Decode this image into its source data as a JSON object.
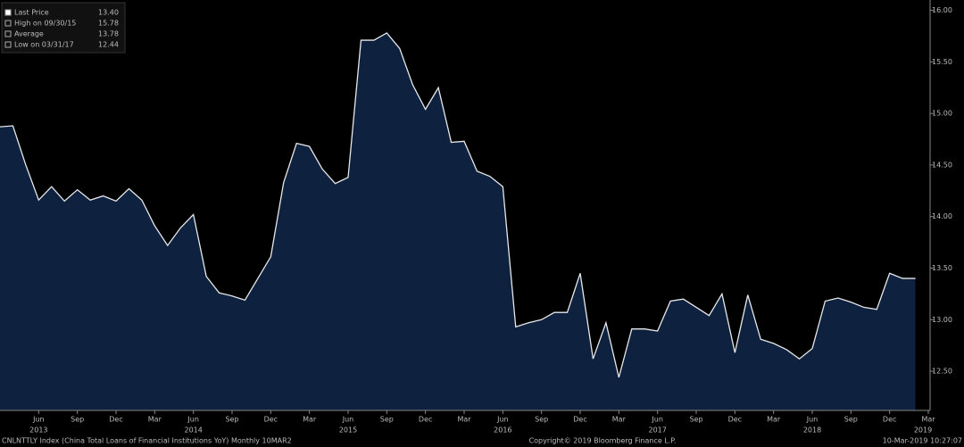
{
  "chart_data": {
    "type": "area",
    "footer_left": "CNLNTTLY Index (China Total Loans of Financial Institutions YoY) Monthly 10MAR2",
    "footer_center": "Copyright© 2019 Bloomberg Finance L.P.",
    "footer_right": "10-Mar-2019 10:27:07",
    "stats": [
      {
        "name": "Last Price",
        "value": 13.4,
        "value_label": "13.40"
      },
      {
        "name": "High on 09/30/15",
        "value": 15.78,
        "value_label": "15.78"
      },
      {
        "name": "Average",
        "value": 13.78,
        "value_label": "13.78"
      },
      {
        "name": "Low on 03/31/17",
        "value": 12.44,
        "value_label": "12.44"
      }
    ],
    "categories": [
      null,
      null,
      null,
      "Jun",
      null,
      null,
      "Sep",
      null,
      null,
      "Dec",
      null,
      null,
      "Mar",
      null,
      null,
      "Jun",
      null,
      null,
      "Sep",
      null,
      null,
      "Dec",
      null,
      null,
      "Mar",
      null,
      null,
      "Jun",
      null,
      null,
      "Sep",
      null,
      null,
      "Dec",
      null,
      null,
      "Mar",
      null,
      null,
      "Jun",
      null,
      null,
      "Sep",
      null,
      null,
      "Dec",
      null,
      null,
      "Mar",
      null,
      null,
      "Jun",
      null,
      null,
      "Sep",
      null,
      null,
      "Dec",
      null,
      null,
      "Mar",
      null,
      null,
      "Jun",
      null,
      null,
      "Sep",
      null,
      null,
      "Dec",
      null,
      null,
      "Mar"
    ],
    "category_years": [
      null,
      null,
      null,
      "2013",
      null,
      null,
      null,
      null,
      null,
      null,
      null,
      null,
      null,
      null,
      null,
      "2014",
      null,
      null,
      null,
      null,
      null,
      null,
      null,
      null,
      null,
      null,
      null,
      "2015",
      null,
      null,
      null,
      null,
      null,
      null,
      null,
      null,
      null,
      null,
      null,
      "2016",
      null,
      null,
      null,
      null,
      null,
      null,
      null,
      null,
      null,
      null,
      null,
      "2017",
      null,
      null,
      null,
      null,
      null,
      null,
      null,
      null,
      null,
      null,
      null,
      "2018",
      null,
      null,
      null,
      null,
      null,
      null,
      null,
      null,
      "2019"
    ],
    "series": [
      {
        "name": "Last Price",
        "color": "#e8e8e8",
        "fill": "#0e2240",
        "values": [
          14.87,
          14.88,
          14.5,
          14.16,
          14.29,
          14.15,
          14.26,
          14.16,
          14.2,
          14.15,
          14.27,
          14.16,
          13.91,
          13.72,
          13.89,
          14.02,
          13.42,
          13.26,
          13.23,
          13.19,
          13.4,
          13.61,
          14.33,
          14.71,
          14.68,
          14.46,
          14.32,
          14.38,
          15.71,
          15.71,
          15.78,
          15.63,
          15.28,
          15.04,
          15.25,
          14.72,
          14.73,
          14.44,
          14.39,
          14.29,
          12.93,
          12.97,
          13.0,
          13.07,
          13.07,
          13.45,
          12.62,
          12.97,
          12.44,
          12.91,
          12.91,
          12.89,
          13.18,
          13.2,
          13.12,
          13.04,
          13.25,
          12.68,
          13.24,
          12.81,
          12.77,
          12.71,
          12.62,
          12.72,
          13.18,
          13.21,
          13.17,
          13.12,
          13.1,
          13.45,
          13.4,
          13.4,
          null
        ]
      }
    ],
    "ylim": [
      12.12,
      16.1
    ],
    "yticks": [
      {
        "value": 12.5,
        "label": "12.50"
      },
      {
        "value": 13,
        "label": "13.00"
      },
      {
        "value": 13.5,
        "label": "13.50"
      },
      {
        "value": 14,
        "label": "14.00"
      },
      {
        "value": 14.5,
        "label": "14.50"
      },
      {
        "value": 15,
        "label": "15.00"
      },
      {
        "value": 15.5,
        "label": "15.50"
      },
      {
        "value": 16,
        "label": "16.00"
      }
    ]
  }
}
